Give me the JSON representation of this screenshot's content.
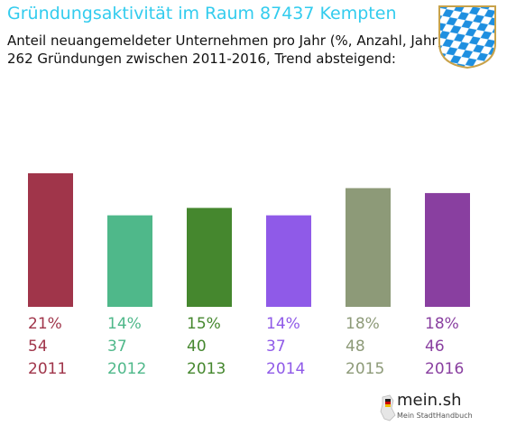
{
  "header": {
    "title": "Gründungsaktivität im Raum 87437 Kempten",
    "subtitle_line1": "Anteil neuangemeldeter Unternehmen pro Jahr (%, Anzahl, Jahr)",
    "subtitle_line2": "262 Gründungen zwischen 2011-2016, Trend absteigend:"
  },
  "logo": {
    "name": "mein.sh",
    "tagline": "Mein StadtHandbuch"
  },
  "chart_data": {
    "type": "bar",
    "categories": [
      "2011",
      "2012",
      "2013",
      "2014",
      "2015",
      "2016"
    ],
    "series": [
      {
        "values": [
          54,
          37,
          40,
          37,
          48,
          46
        ]
      }
    ],
    "percent_labels": [
      "21%",
      "14%",
      "15%",
      "14%",
      "18%",
      "18%"
    ],
    "count_labels": [
      "54",
      "37",
      "40",
      "37",
      "48",
      "46"
    ],
    "colors": [
      "#a0354a",
      "#4fb88a",
      "#45872e",
      "#8f5ae8",
      "#8d9a78",
      "#893fa0"
    ],
    "ylim": [
      0,
      54
    ],
    "grid": false,
    "legend": "none"
  },
  "colors": {
    "title": "#33ccee"
  }
}
